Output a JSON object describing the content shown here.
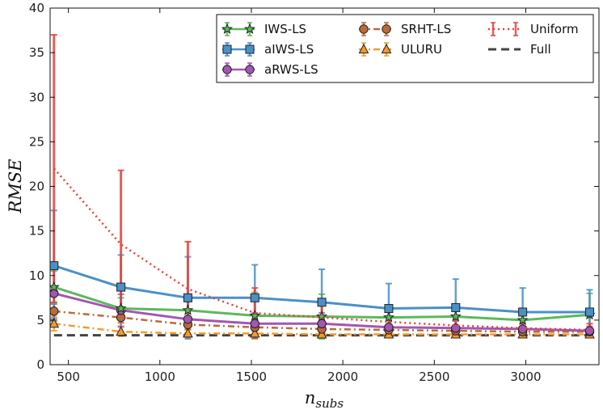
{
  "chart_data": {
    "type": "line",
    "title": "",
    "xlabel": "n",
    "xlabel_sub": "subs",
    "ylabel": "RMSE",
    "xlim": [
      400,
      3400
    ],
    "ylim": [
      0,
      40
    ],
    "xticks": [
      500,
      1000,
      1500,
      2000,
      2500,
      3000
    ],
    "yticks": [
      0,
      5,
      10,
      15,
      20,
      25,
      30,
      35,
      40
    ],
    "grid": false,
    "legend_position": "top-right",
    "x": [
      421,
      787,
      1153,
      1519,
      1885,
      2251,
      2617,
      2983,
      3349
    ],
    "series": [
      {
        "name": "IWS-LS",
        "key": "iws",
        "color": "#5cb85c",
        "linestyle": "solid",
        "marker": "star",
        "values": [
          8.7,
          6.3,
          6.1,
          5.5,
          5.4,
          5.3,
          5.4,
          5.0,
          5.6
        ],
        "errors": [
          1.8,
          1.2,
          1.0,
          2.6,
          2.5,
          1.2,
          1.1,
          0.8,
          2.4
        ]
      },
      {
        "name": "aIWS-LS",
        "key": "aiws",
        "color": "#4a90c8",
        "linestyle": "solid",
        "marker": "square",
        "values": [
          11.1,
          8.7,
          7.5,
          7.5,
          7.0,
          6.3,
          6.4,
          5.9,
          5.9
        ],
        "errors": [
          6.2,
          3.6,
          4.6,
          3.7,
          3.7,
          2.8,
          3.2,
          2.7,
          2.5
        ]
      },
      {
        "name": "aRWS-LS",
        "key": "arws",
        "color": "#a356b2",
        "linestyle": "solid",
        "marker": "circle",
        "values": [
          8.0,
          6.1,
          5.1,
          4.6,
          4.6,
          4.2,
          4.1,
          4.0,
          3.8
        ],
        "errors": [
          3.0,
          1.8,
          2.0,
          1.2,
          1.2,
          0.8,
          0.8,
          0.6,
          0.5
        ]
      },
      {
        "name": "SRHT-LS",
        "key": "srht",
        "color": "#b86a3a",
        "linestyle": "dashdot",
        "marker": "circle",
        "values": [
          6.0,
          5.3,
          4.5,
          4.2,
          4.0,
          3.9,
          3.8,
          3.7,
          3.7
        ],
        "errors": [
          0.8,
          0.6,
          0.5,
          0.4,
          0.4,
          0.3,
          0.3,
          0.3,
          0.3
        ]
      },
      {
        "name": "ULURU",
        "key": "uluru",
        "color": "#f59a2a",
        "linestyle": "dashdot",
        "marker": "triangle",
        "values": [
          4.6,
          3.7,
          3.5,
          3.5,
          3.4,
          3.4,
          3.4,
          3.4,
          3.4
        ],
        "errors": [
          0.8,
          0.5,
          0.4,
          0.3,
          0.3,
          0.2,
          0.2,
          0.2,
          0.2
        ]
      },
      {
        "name": "Uniform",
        "key": "uniform",
        "color": "#e8403a",
        "linestyle": "dotted",
        "marker": "none",
        "values": [
          22.0,
          13.5,
          8.5,
          5.8,
          5.3,
          4.8,
          4.4,
          4.1,
          3.9
        ],
        "errors": [
          15.0,
          8.3,
          5.3,
          2.8,
          1.8,
          1.3,
          1.1,
          0.9,
          0.7
        ]
      },
      {
        "name": "Full",
        "key": "full",
        "color": "#444444",
        "linestyle": "dashed",
        "marker": "none",
        "values": [
          3.3,
          3.3,
          3.3,
          3.3,
          3.3,
          3.3,
          3.3,
          3.3,
          3.3
        ],
        "errors": [
          0,
          0,
          0,
          0,
          0,
          0,
          0,
          0,
          0
        ]
      }
    ]
  }
}
